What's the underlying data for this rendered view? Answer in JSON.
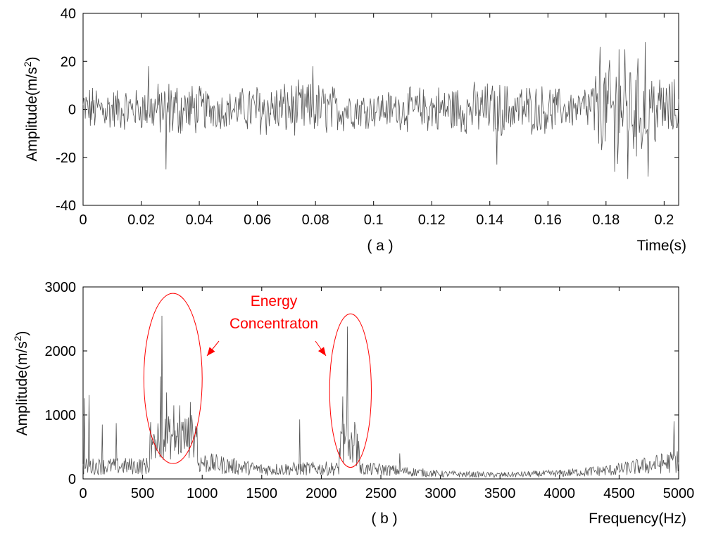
{
  "chart_data": [
    {
      "type": "line",
      "panel_label": "( a )",
      "xlabel": "Time(s)",
      "ylabel": "Amplitude(m/s",
      "ylabel_sup": "2",
      "ylabel_close": ")",
      "xlim": [
        0,
        0.205
      ],
      "ylim": [
        -40,
        40
      ],
      "x_ticks": [
        0,
        0.02,
        0.04,
        0.06,
        0.08,
        0.1,
        0.12,
        0.14,
        0.16,
        0.18,
        0.2
      ],
      "x_tick_labels": [
        "0",
        "0.02",
        "0.04",
        "0.06",
        "0.08",
        "0.1",
        "0.12",
        "0.14",
        "0.16",
        "0.18",
        "0.2"
      ],
      "y_ticks": [
        -40,
        -20,
        0,
        20,
        40
      ],
      "y_tick_labels": [
        "-40",
        "-20",
        "0",
        "20",
        "40"
      ],
      "grid": false,
      "line_color": "#555555",
      "series": [
        {
          "name": "",
          "sample_count": 820,
          "envelope_x": [
            0,
            0.02,
            0.03,
            0.05,
            0.06,
            0.08,
            0.1,
            0.12,
            0.14,
            0.16,
            0.17,
            0.18,
            0.19,
            0.2,
            0.205
          ],
          "envelope_amplitude": [
            7,
            6,
            9,
            5,
            8,
            8,
            5,
            7,
            8,
            7,
            5,
            14,
            15,
            10,
            8
          ],
          "peaks": [
            {
              "x": 0.0285,
              "y": -25
            },
            {
              "x": 0.0225,
              "y": 18
            },
            {
              "x": 0.079,
              "y": 18
            },
            {
              "x": 0.1425,
              "y": -23
            },
            {
              "x": 0.178,
              "y": 26
            },
            {
              "x": 0.183,
              "y": -26
            },
            {
              "x": 0.1845,
              "y": 25
            },
            {
              "x": 0.1865,
              "y": 25
            },
            {
              "x": 0.1875,
              "y": -29
            },
            {
              "x": 0.1935,
              "y": 28
            },
            {
              "x": 0.1945,
              "y": -28
            }
          ]
        }
      ]
    },
    {
      "type": "line",
      "panel_label": "( b )",
      "xlabel": "Frequency(Hz)",
      "ylabel": "Amplitude(m/s",
      "ylabel_sup": "2",
      "ylabel_close": ")",
      "xlim": [
        0,
        5000
      ],
      "ylim": [
        0,
        3000
      ],
      "x_ticks": [
        0,
        500,
        1000,
        1500,
        2000,
        2500,
        3000,
        3500,
        4000,
        4500,
        5000
      ],
      "x_tick_labels": [
        "0",
        "500",
        "1000",
        "1500",
        "2000",
        "2500",
        "3000",
        "3500",
        "4000",
        "4500",
        "5000"
      ],
      "y_ticks": [
        0,
        1000,
        2000,
        3000
      ],
      "y_tick_labels": [
        "0",
        "1000",
        "2000",
        "3000"
      ],
      "grid": false,
      "line_color": "#555555",
      "series": [
        {
          "name": "",
          "sample_count": 900,
          "baseline_x": [
            0,
            500,
            1000,
            1500,
            2000,
            2500,
            3000,
            3500,
            4000,
            4500,
            5000
          ],
          "baseline_level": [
            250,
            260,
            330,
            190,
            210,
            190,
            100,
            80,
            110,
            190,
            360
          ],
          "peaks": [
            {
              "x": 10,
              "y": 1260
            },
            {
              "x": 50,
              "y": 1310
            },
            {
              "x": 160,
              "y": 850
            },
            {
              "x": 280,
              "y": 870
            },
            {
              "x": 580,
              "y": 620
            },
            {
              "x": 650,
              "y": 1600
            },
            {
              "x": 660,
              "y": 2550
            },
            {
              "x": 700,
              "y": 1350
            },
            {
              "x": 760,
              "y": 1150
            },
            {
              "x": 810,
              "y": 1150
            },
            {
              "x": 900,
              "y": 1200
            },
            {
              "x": 1820,
              "y": 930
            },
            {
              "x": 2180,
              "y": 1290
            },
            {
              "x": 2220,
              "y": 2380
            },
            {
              "x": 2280,
              "y": 890
            },
            {
              "x": 2660,
              "y": 400
            },
            {
              "x": 4960,
              "y": 900
            }
          ]
        }
      ],
      "annotation": {
        "text_line1": "Energy",
        "text_line2": "Concentraton",
        "color": "#ff0000",
        "regions": [
          {
            "x_range": [
              510,
              1000
            ],
            "y_range": [
              240,
              2900
            ]
          },
          {
            "x_range": [
              2070,
              2420
            ],
            "y_range": [
              180,
              2580
            ]
          }
        ]
      }
    }
  ]
}
